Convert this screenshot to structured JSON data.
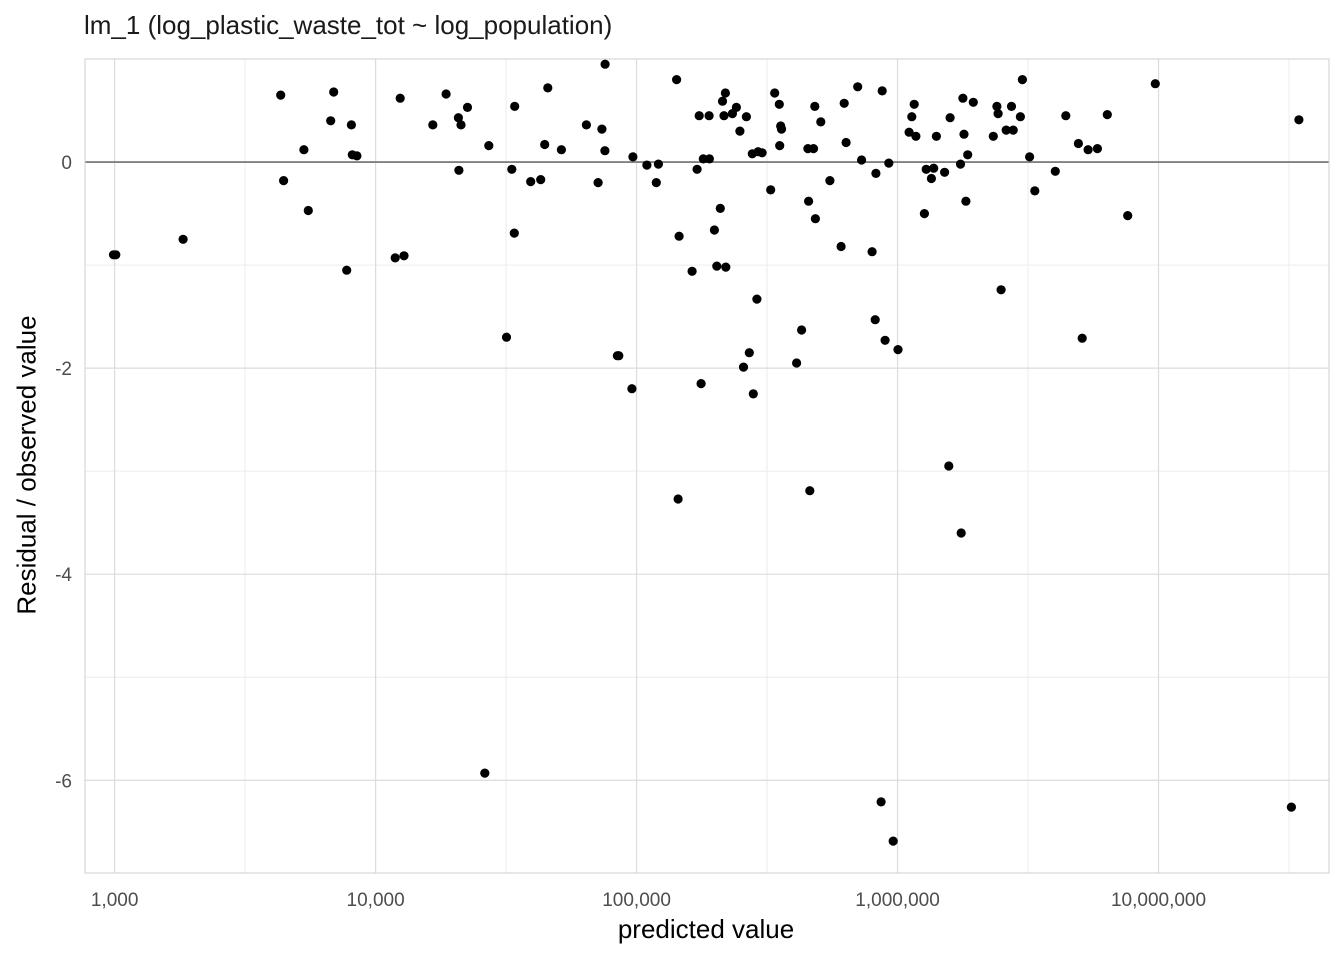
{
  "chart_data": {
    "type": "scatter",
    "title": "lm_1 (log_plastic_waste_tot ~ log_population)",
    "xlabel": "predicted value",
    "ylabel": "Residual / observed value",
    "x_scale": "log10",
    "xlim": [
      770,
      45000000
    ],
    "ylim": [
      -6.9,
      1.0
    ],
    "x_ticks": [
      1000,
      10000,
      100000,
      1000000,
      10000000
    ],
    "x_tick_labels": [
      "1,000",
      "10,000",
      "100,000",
      "1,000,000",
      "10,000,000"
    ],
    "y_ticks": [
      -6,
      -4,
      -2,
      0
    ],
    "y_tick_labels": [
      "-6",
      "-4",
      "-2",
      "0"
    ],
    "reference_line_y": 0,
    "grid": true,
    "colors": {
      "points": "#000000",
      "grid_major": "#dcdcdc",
      "grid_minor": "#ececec",
      "reference_line": "#808080"
    },
    "points": [
      [
        990,
        -0.9
      ],
      [
        1010,
        -0.9
      ],
      [
        1830,
        -0.75
      ],
      [
        4330,
        0.65
      ],
      [
        4440,
        -0.18
      ],
      [
        5310,
        0.12
      ],
      [
        5520,
        -0.47
      ],
      [
        6730,
        0.4
      ],
      [
        6910,
        0.68
      ],
      [
        7750,
        -1.05
      ],
      [
        8080,
        0.36
      ],
      [
        8140,
        0.07
      ],
      [
        8480,
        0.06
      ],
      [
        11890,
        -0.93
      ],
      [
        12420,
        0.62
      ],
      [
        12850,
        -0.91
      ],
      [
        16560,
        0.36
      ],
      [
        18620,
        0.66
      ],
      [
        20760,
        0.43
      ],
      [
        20850,
        -0.08
      ],
      [
        21250,
        0.36
      ],
      [
        22490,
        0.53
      ],
      [
        26210,
        -5.93
      ],
      [
        27140,
        0.16
      ],
      [
        31740,
        -1.7
      ],
      [
        33260,
        -0.07
      ],
      [
        33990,
        -0.69
      ],
      [
        34130,
        0.54
      ],
      [
        39300,
        -0.19
      ],
      [
        42910,
        -0.17
      ],
      [
        44440,
        0.17
      ],
      [
        45690,
        0.72
      ],
      [
        51510,
        0.12
      ],
      [
        64210,
        0.36
      ],
      [
        71240,
        -0.2
      ],
      [
        73640,
        0.32
      ],
      [
        75720,
        0.95
      ],
      [
        75620,
        0.11
      ],
      [
        84420,
        -1.88
      ],
      [
        85480,
        -1.88
      ],
      [
        95940,
        -2.2
      ],
      [
        96830,
        0.05
      ],
      [
        109500,
        -0.03
      ],
      [
        119000,
        -0.2
      ],
      [
        121200,
        -0.02
      ],
      [
        142300,
        0.8
      ],
      [
        144200,
        -3.27
      ],
      [
        145500,
        -0.72
      ],
      [
        163200,
        -1.06
      ],
      [
        170600,
        -0.07
      ],
      [
        173800,
        0.45
      ],
      [
        176700,
        -2.15
      ],
      [
        180200,
        0.03
      ],
      [
        189700,
        0.45
      ],
      [
        190200,
        0.03
      ],
      [
        198700,
        -0.66
      ],
      [
        203000,
        -1.01
      ],
      [
        209400,
        -0.45
      ],
      [
        213500,
        0.59
      ],
      [
        216200,
        0.45
      ],
      [
        218900,
        0.67
      ],
      [
        219800,
        -1.02
      ],
      [
        233000,
        0.47
      ],
      [
        241200,
        0.53
      ],
      [
        248900,
        0.3
      ],
      [
        256900,
        -1.99
      ],
      [
        263600,
        0.44
      ],
      [
        270400,
        -1.85
      ],
      [
        277700,
        0.08
      ],
      [
        280000,
        -2.25
      ],
      [
        289200,
        -1.33
      ],
      [
        292100,
        0.1
      ],
      [
        302700,
        0.09
      ],
      [
        326500,
        -0.27
      ],
      [
        338200,
        0.67
      ],
      [
        352300,
        0.56
      ],
      [
        353400,
        0.16
      ],
      [
        356600,
        0.35
      ],
      [
        359200,
        0.32
      ],
      [
        410400,
        -1.95
      ],
      [
        429000,
        -1.63
      ],
      [
        453300,
        0.13
      ],
      [
        456400,
        -0.38
      ],
      [
        460900,
        -3.19
      ],
      [
        476200,
        0.13
      ],
      [
        481700,
        0.54
      ],
      [
        484500,
        -0.55
      ],
      [
        508200,
        0.39
      ],
      [
        550700,
        -0.18
      ],
      [
        607800,
        -0.82
      ],
      [
        624700,
        0.57
      ],
      [
        635000,
        0.19
      ],
      [
        703500,
        0.73
      ],
      [
        728500,
        0.02
      ],
      [
        799200,
        -0.87
      ],
      [
        820900,
        -1.53
      ],
      [
        825800,
        -0.11
      ],
      [
        865100,
        -6.21
      ],
      [
        873500,
        0.69
      ],
      [
        895900,
        -1.73
      ],
      [
        925300,
        -0.01
      ],
      [
        962100,
        -6.59
      ],
      [
        1004000,
        -1.82
      ],
      [
        1107000,
        0.29
      ],
      [
        1134000,
        0.44
      ],
      [
        1158000,
        0.56
      ],
      [
        1176000,
        0.25
      ],
      [
        1267000,
        -0.5
      ],
      [
        1288000,
        -0.07
      ],
      [
        1348000,
        -0.16
      ],
      [
        1376000,
        -0.06
      ],
      [
        1409000,
        0.25
      ],
      [
        1514000,
        -0.1
      ],
      [
        1572000,
        -2.95
      ],
      [
        1590000,
        0.43
      ],
      [
        1743000,
        -0.02
      ],
      [
        1753000,
        -3.6
      ],
      [
        1780000,
        0.62
      ],
      [
        1798000,
        0.27
      ],
      [
        1827000,
        -0.38
      ],
      [
        1857000,
        0.07
      ],
      [
        1951000,
        0.58
      ],
      [
        2327000,
        0.25
      ],
      [
        2402000,
        0.54
      ],
      [
        2429000,
        0.47
      ],
      [
        2493000,
        -1.24
      ],
      [
        2608000,
        0.31
      ],
      [
        2732000,
        0.54
      ],
      [
        2774000,
        0.31
      ],
      [
        2956000,
        0.44
      ],
      [
        3008000,
        0.8
      ],
      [
        3206000,
        0.05
      ],
      [
        3358000,
        -0.28
      ],
      [
        4022000,
        -0.09
      ],
      [
        4414000,
        0.45
      ],
      [
        4933000,
        0.18
      ],
      [
        5100000,
        -1.71
      ],
      [
        5370000,
        0.12
      ],
      [
        5831000,
        0.13
      ],
      [
        6362000,
        0.46
      ],
      [
        7616000,
        -0.52
      ],
      [
        9716000,
        0.76
      ],
      [
        32300000,
        -6.26
      ],
      [
        34500000,
        0.41
      ]
    ]
  }
}
